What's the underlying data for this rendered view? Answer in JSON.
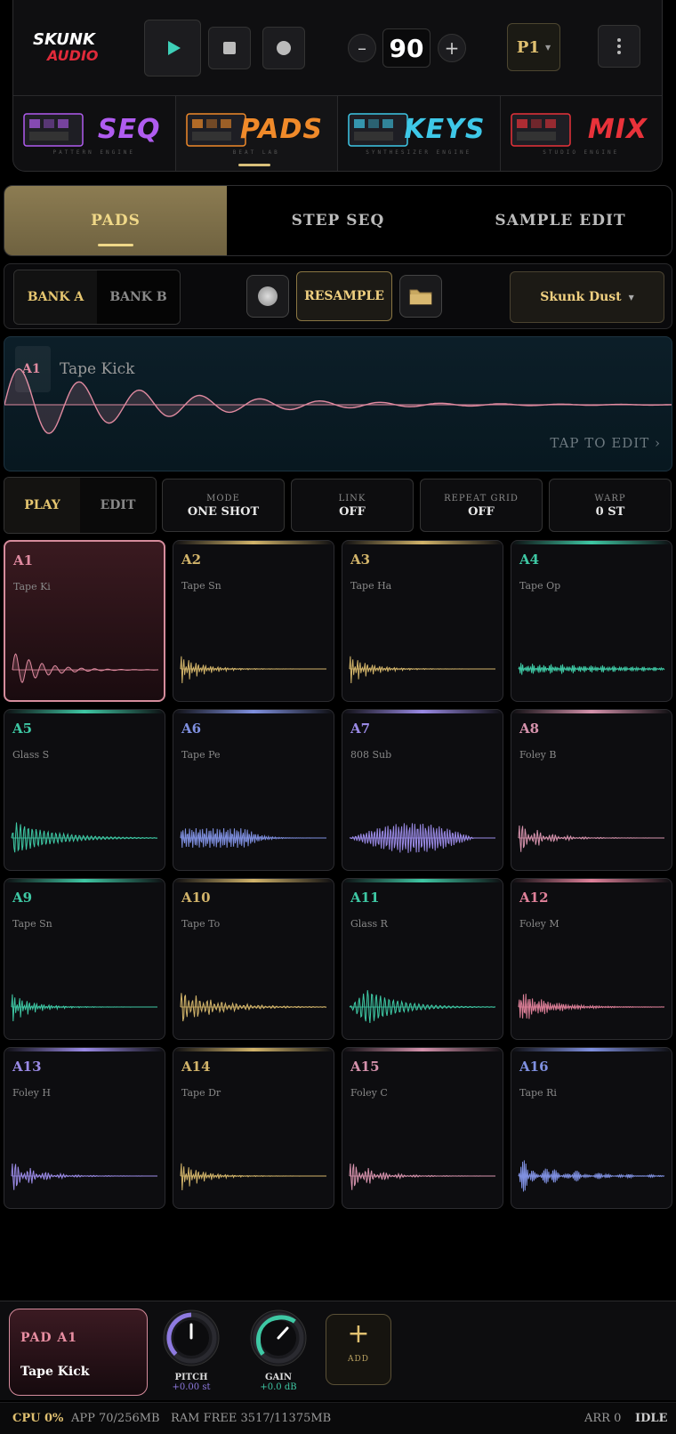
{
  "header": {
    "logo_text_top": "SKUNK",
    "logo_text_bottom": "AUDIO",
    "bpm": "90",
    "bpm_minus": "–",
    "bpm_plus": "+",
    "preset": "P1",
    "icons": {
      "play": "play-icon",
      "stop": "stop-icon",
      "record": "record-icon",
      "menu": "more-vertical-icon"
    }
  },
  "modules": [
    {
      "title": "SEQ",
      "subtitle": "PATTERN ENGINE",
      "color": "#b05cf0"
    },
    {
      "title": "PADS",
      "subtitle": "BEAT LAB",
      "color": "#f08a2a"
    },
    {
      "title": "KEYS",
      "subtitle": "SYNTHESIZER ENGINE",
      "color": "#3ec8e8"
    },
    {
      "title": "MIX",
      "subtitle": "STUDIO ENGINE",
      "color": "#e8323a"
    }
  ],
  "main_tabs": [
    "PADS",
    "STEP SEQ",
    "SAMPLE EDIT"
  ],
  "bank_row": {
    "bank_a": "BANK A",
    "bank_b": "BANK B",
    "resample": "RESAMPLE",
    "kit": "Skunk Dust",
    "icons": {
      "monitor": "monitor-dot-icon",
      "folder": "folder-icon"
    }
  },
  "waveform": {
    "pad": "A1",
    "name": "Tape Kick",
    "hint": "TAP TO EDIT  ›",
    "color": "#e08aa0"
  },
  "mode_row": {
    "play": "PLAY",
    "edit": "EDIT",
    "params": [
      {
        "label": "MODE",
        "value": "ONE SHOT"
      },
      {
        "label": "LINK",
        "value": "OFF"
      },
      {
        "label": "REPEAT GRID",
        "value": "OFF"
      },
      {
        "label": "WARP",
        "value": "0 ST"
      }
    ]
  },
  "pads": [
    {
      "id": "A1",
      "name": "Tape Ki",
      "color": "#e08aa0",
      "wave": "kick"
    },
    {
      "id": "A2",
      "name": "Tape Sn",
      "color": "#d2b46a",
      "wave": "snare"
    },
    {
      "id": "A3",
      "name": "Tape Ha",
      "color": "#d2b46a",
      "wave": "snare"
    },
    {
      "id": "A4",
      "name": "Tape Op",
      "color": "#3ec8a4",
      "wave": "open"
    },
    {
      "id": "A5",
      "name": "Glass S",
      "color": "#3ec8a4",
      "wave": "glass"
    },
    {
      "id": "A6",
      "name": "Tape Pe",
      "color": "#7f90e0",
      "wave": "perc"
    },
    {
      "id": "A7",
      "name": "808 Sub",
      "color": "#9a8ae6",
      "wave": "sub"
    },
    {
      "id": "A8",
      "name": "Foley B",
      "color": "#d592ac",
      "wave": "foley"
    },
    {
      "id": "A9",
      "name": "Tape Sn",
      "color": "#3ec8a4",
      "wave": "snare"
    },
    {
      "id": "A10",
      "name": "Tape To",
      "color": "#d2b46a",
      "wave": "tom"
    },
    {
      "id": "A11",
      "name": "Glass R",
      "color": "#3ec8a4",
      "wave": "glassr"
    },
    {
      "id": "A12",
      "name": "Foley M",
      "color": "#e0819a",
      "wave": "foleym"
    },
    {
      "id": "A13",
      "name": "Foley H",
      "color": "#9a8ae6",
      "wave": "foley"
    },
    {
      "id": "A14",
      "name": "Tape Dr",
      "color": "#d2b46a",
      "wave": "snare"
    },
    {
      "id": "A15",
      "name": "Foley C",
      "color": "#d592ac",
      "wave": "foley"
    },
    {
      "id": "A16",
      "name": "Tape Ri",
      "color": "#7f90e0",
      "wave": "ride"
    }
  ],
  "bottom": {
    "pad_label": "PAD A1",
    "pad_name": "Tape Kick",
    "pitch_label": "PITCH",
    "pitch_value": "+0.00 st",
    "gain_label": "GAIN",
    "gain_value": "+0.0 dB",
    "add_label": "ADD",
    "add_symbol": "+"
  },
  "status": {
    "cpu": "CPU 0%",
    "app": "APP 70/256MB",
    "ram": "RAM FREE 3517/11375MB",
    "arr": "ARR 0",
    "state": "IDLE"
  }
}
